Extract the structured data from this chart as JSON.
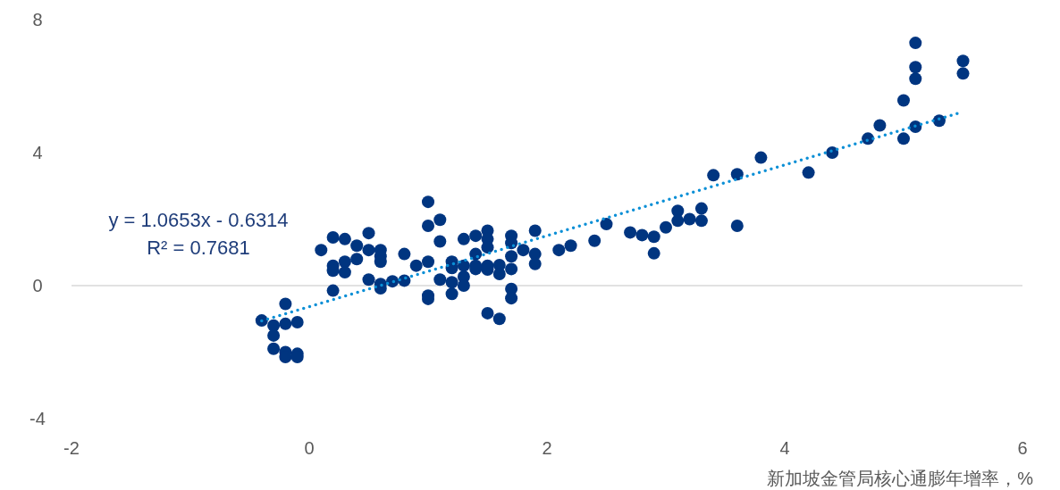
{
  "chart_data": {
    "type": "scatter",
    "xlabel": "新加坡金管局核心通膨年增率，%",
    "annotations": [
      "y = 1.0653x - 0.6314",
      "R² = 0.7681"
    ],
    "xlim": [
      -2,
      6
    ],
    "xticks": [
      -2,
      0,
      2,
      4,
      6
    ],
    "ylim": [
      -4,
      8
    ],
    "yticks": [
      -4,
      0,
      4,
      8
    ],
    "marker": "circle",
    "series": [
      {
        "color": "#003580",
        "x": [
          -0.4,
          -0.3,
          -0.3,
          -0.3,
          -0.2,
          -0.2,
          -0.2,
          -0.2,
          -0.1,
          -0.1,
          -0.1,
          0.1,
          0.2,
          0.2,
          0.2,
          0.2,
          0.3,
          0.3,
          0.3,
          0.4,
          0.4,
          0.5,
          0.5,
          0.5,
          0.6,
          0.6,
          0.6,
          0.6,
          0.6,
          0.7,
          0.8,
          0.8,
          0.9,
          1.0,
          1.0,
          1.0,
          1.0,
          1.0,
          1.1,
          1.1,
          1.1,
          1.2,
          1.2,
          1.2,
          1.2,
          1.3,
          1.3,
          1.3,
          1.3,
          1.4,
          1.4,
          1.4,
          1.4,
          1.5,
          1.5,
          1.5,
          1.5,
          1.5,
          1.5,
          1.6,
          1.6,
          1.6,
          1.7,
          1.7,
          1.7,
          1.7,
          1.7,
          1.7,
          1.8,
          1.9,
          1.9,
          1.9,
          2.1,
          2.2,
          2.4,
          2.5,
          2.7,
          2.8,
          2.9,
          2.9,
          3.0,
          3.1,
          3.1,
          3.2,
          3.3,
          3.3,
          3.4,
          3.6,
          3.6,
          3.8,
          4.2,
          4.4,
          4.7,
          4.8,
          5.0,
          5.0,
          5.1,
          5.1,
          5.1,
          5.1,
          5.3,
          5.5,
          5.5
        ],
        "values": [
          -1.05,
          -1.2,
          -1.5,
          -1.9,
          -0.55,
          -1.15,
          -2.0,
          -2.15,
          -1.1,
          -2.05,
          -2.15,
          1.07,
          1.45,
          0.6,
          0.45,
          -0.15,
          1.4,
          0.72,
          0.4,
          1.2,
          0.8,
          1.58,
          1.07,
          0.18,
          1.07,
          0.88,
          0.72,
          0.05,
          -0.08,
          0.13,
          0.95,
          0.15,
          0.6,
          2.52,
          1.8,
          0.72,
          -0.3,
          -0.4,
          1.98,
          1.33,
          0.18,
          0.72,
          0.53,
          0.1,
          -0.25,
          1.4,
          0.6,
          0.27,
          0.0,
          1.5,
          0.95,
          0.6,
          0.5,
          1.65,
          1.4,
          1.15,
          0.6,
          0.48,
          -0.83,
          0.62,
          0.35,
          -1.0,
          1.5,
          1.28,
          0.88,
          0.5,
          -0.1,
          -0.38,
          1.07,
          1.65,
          0.95,
          0.65,
          1.07,
          1.2,
          1.35,
          1.85,
          1.6,
          1.52,
          1.47,
          0.97,
          1.75,
          2.25,
          1.95,
          2.0,
          2.32,
          1.95,
          3.32,
          3.35,
          1.8,
          3.85,
          3.4,
          4.0,
          4.42,
          4.82,
          5.57,
          4.42,
          7.3,
          6.57,
          6.22,
          4.78,
          4.96,
          6.76,
          6.38
        ]
      },
      {
        "type": "line",
        "color": "#0a8fd6",
        "line_style": "dotted",
        "marker": "none",
        "x": [
          -0.4,
          5.5
        ],
        "values": [
          -1.06,
          5.23
        ]
      }
    ]
  }
}
